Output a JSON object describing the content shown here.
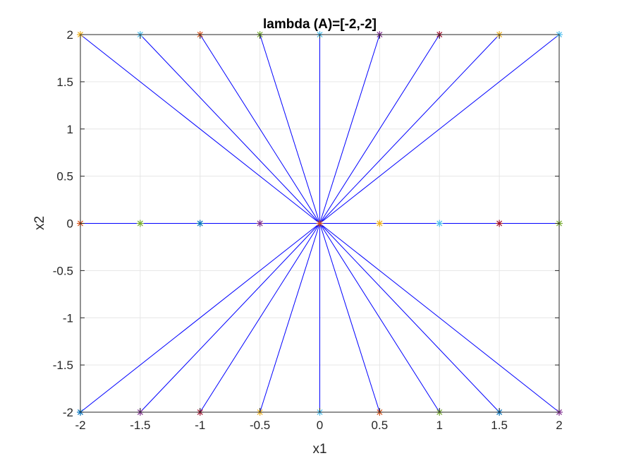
{
  "chart_data": {
    "type": "line",
    "title": "lambda (A)=[-2,-2]",
    "xlabel": "x1",
    "ylabel": "x2",
    "xlim": [
      -2,
      2
    ],
    "ylim": [
      -2,
      2
    ],
    "grid": true,
    "x_ticks": [
      "-2",
      "-1.5",
      "-1",
      "-0.5",
      "0",
      "0.5",
      "1",
      "1.5",
      "2"
    ],
    "y_ticks": [
      "-2",
      "-1.5",
      "-1",
      "-0.5",
      "0",
      "0.5",
      "1",
      "1.5",
      "2"
    ],
    "x_tick_values": [
      -2,
      -1.5,
      -1,
      -0.5,
      0,
      0.5,
      1,
      1.5,
      2
    ],
    "y_tick_values": [
      -2,
      -1.5,
      -1,
      -0.5,
      0,
      0.5,
      1,
      1.5,
      2
    ],
    "trajectory_color": "#0000ff",
    "eigenvector_color": "#ff0000",
    "eigenvectors": [
      {
        "from": [
          0,
          0
        ],
        "to": [
          1,
          0
        ]
      },
      {
        "from": [
          0,
          0
        ],
        "to": [
          0,
          1
        ]
      }
    ],
    "end_point": [
      0,
      0
    ],
    "marker": "asterisk",
    "marker_colors": [
      "#edb120",
      "#4dbeee",
      "#a2142f",
      "#77ac30",
      "#0072bd",
      "#7e2f8e",
      "#d95319"
    ],
    "initial_points": [
      {
        "x": -2,
        "y": 2,
        "color": "#edb120"
      },
      {
        "x": -1.5,
        "y": 2,
        "color": "#4dbeee"
      },
      {
        "x": -1,
        "y": 2,
        "color": "#d95319"
      },
      {
        "x": -0.5,
        "y": 2,
        "color": "#77ac30"
      },
      {
        "x": 0,
        "y": 2,
        "color": "#4dbeee"
      },
      {
        "x": 0.5,
        "y": 2,
        "color": "#7e2f8e"
      },
      {
        "x": 1,
        "y": 2,
        "color": "#a2142f"
      },
      {
        "x": 1.5,
        "y": 2,
        "color": "#edb120"
      },
      {
        "x": 2,
        "y": 2,
        "color": "#4dbeee"
      },
      {
        "x": -2,
        "y": 0,
        "color": "#d95319"
      },
      {
        "x": -1.5,
        "y": 0,
        "color": "#77ac30"
      },
      {
        "x": -1,
        "y": 0,
        "color": "#0072bd"
      },
      {
        "x": -0.5,
        "y": 0,
        "color": "#7e2f8e"
      },
      {
        "x": 0.5,
        "y": 0,
        "color": "#edb120"
      },
      {
        "x": 1,
        "y": 0,
        "color": "#4dbeee"
      },
      {
        "x": 1.5,
        "y": 0,
        "color": "#a2142f"
      },
      {
        "x": 2,
        "y": 0,
        "color": "#77ac30"
      },
      {
        "x": -2,
        "y": -2,
        "color": "#0072bd"
      },
      {
        "x": -1.5,
        "y": -2,
        "color": "#7e2f8e"
      },
      {
        "x": -1,
        "y": -2,
        "color": "#a2142f"
      },
      {
        "x": -0.5,
        "y": -2,
        "color": "#edb120"
      },
      {
        "x": 0,
        "y": -2,
        "color": "#4dbeee"
      },
      {
        "x": 0.5,
        "y": -2,
        "color": "#d95319"
      },
      {
        "x": 1,
        "y": -2,
        "color": "#77ac30"
      },
      {
        "x": 1.5,
        "y": -2,
        "color": "#0072bd"
      },
      {
        "x": 2,
        "y": -2,
        "color": "#7e2f8e"
      }
    ]
  }
}
